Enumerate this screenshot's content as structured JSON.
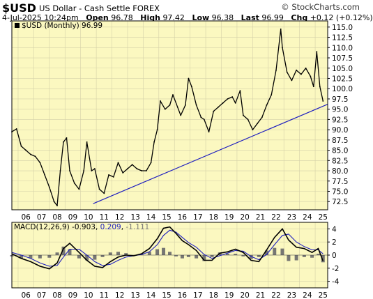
{
  "header": {
    "symbol": "$USD",
    "name": "US Dollar - Cash Settle FOREX",
    "site": "© StockCharts.com",
    "date": "4-Jul-2025 10:24pm",
    "open_label": "Open",
    "open": "96.78",
    "high_label": "High",
    "high": "97.42",
    "low_label": "Low",
    "low": "96.38",
    "last_label": "Last",
    "last": "96.99",
    "chg_label": "Chg",
    "chg": "+0.12 (+0.12%)"
  },
  "chart_data": [
    {
      "type": "line",
      "legend": "$USD (Monthly) 96.99",
      "x_ticks": [
        "06",
        "07",
        "08",
        "09",
        "10",
        "11",
        "12",
        "13",
        "14",
        "15",
        "16",
        "17",
        "18",
        "19",
        "20",
        "21",
        "22",
        "23",
        "24",
        "25"
      ],
      "y_ticks": [
        "72.5",
        "75.0",
        "77.5",
        "80.0",
        "82.5",
        "85.0",
        "87.5",
        "90.0",
        "92.5",
        "95.0",
        "97.5",
        "100.0",
        "102.5",
        "105.0",
        "107.5",
        "110.0",
        "112.5",
        "115.0"
      ],
      "ylim": [
        70.5,
        116.5
      ],
      "xlim": [
        2005.6,
        2025.8
      ],
      "x": [
        2005.6,
        2005.9,
        2006.2,
        2006.5,
        2006.8,
        2007.1,
        2007.4,
        2007.7,
        2008.0,
        2008.3,
        2008.5,
        2008.7,
        2008.9,
        2009.1,
        2009.3,
        2009.6,
        2009.9,
        2010.2,
        2010.4,
        2010.7,
        2010.9,
        2011.2,
        2011.5,
        2011.8,
        2012.1,
        2012.4,
        2012.7,
        2013.0,
        2013.3,
        2013.6,
        2013.9,
        2014.2,
        2014.5,
        2014.7,
        2014.9,
        2015.1,
        2015.4,
        2015.7,
        2015.9,
        2016.2,
        2016.4,
        2016.7,
        2016.9,
        2017.1,
        2017.4,
        2017.7,
        2017.9,
        2018.2,
        2018.5,
        2018.8,
        2019.1,
        2019.4,
        2019.7,
        2019.9,
        2020.2,
        2020.4,
        2020.7,
        2021.0,
        2021.3,
        2021.6,
        2021.9,
        2022.2,
        2022.5,
        2022.8,
        2022.9,
        2023.2,
        2023.5,
        2023.8,
        2024.1,
        2024.4,
        2024.7,
        2024.9,
        2025.1,
        2025.3,
        2025.5
      ],
      "y": [
        89.5,
        90.2,
        86.0,
        85.0,
        84.0,
        83.5,
        82.0,
        79.0,
        76.0,
        72.5,
        71.5,
        80.0,
        87.0,
        88.0,
        80.0,
        77.0,
        75.5,
        80.0,
        87.0,
        80.0,
        80.5,
        75.5,
        74.5,
        79.0,
        78.5,
        82.0,
        79.5,
        80.5,
        81.5,
        80.5,
        80.0,
        80.0,
        82.0,
        87.0,
        90.0,
        97.0,
        95.0,
        96.0,
        98.5,
        95.5,
        93.5,
        96.0,
        102.5,
        100.5,
        96.0,
        93.0,
        92.5,
        89.5,
        94.5,
        95.5,
        96.5,
        97.5,
        98.0,
        96.5,
        99.5,
        93.5,
        92.5,
        90.0,
        91.5,
        93.0,
        96.0,
        98.5,
        104.5,
        114.5,
        110.0,
        104.0,
        102.0,
        104.5,
        103.5,
        105.0,
        103.0,
        100.5,
        109.0,
        100.5,
        96.99
      ],
      "trendline": {
        "x": [
          2010.8,
          2025.8
        ],
        "y": [
          72.0,
          96.2
        ]
      }
    },
    {
      "type": "line",
      "legend": "MACD(12,26,9)",
      "macd": "-0.903",
      "signal": "0.209",
      "histogram": "-1.111",
      "y_ticks": [
        "4",
        "2",
        "0",
        "-2",
        "-4"
      ],
      "ylim": [
        -5,
        5
      ],
      "x": [
        2005.6,
        2006.2,
        2006.8,
        2007.4,
        2008.0,
        2008.5,
        2008.9,
        2009.3,
        2009.9,
        2010.4,
        2010.9,
        2011.4,
        2011.9,
        2012.4,
        2012.9,
        2013.4,
        2013.9,
        2014.4,
        2014.9,
        2015.3,
        2015.7,
        2016.1,
        2016.5,
        2016.9,
        2017.4,
        2017.9,
        2018.4,
        2018.9,
        2019.4,
        2019.9,
        2020.4,
        2020.9,
        2021.4,
        2021.9,
        2022.4,
        2022.9,
        2023.3,
        2023.8,
        2024.3,
        2024.8,
        2025.2,
        2025.5
      ],
      "macd_values": [
        0.2,
        -0.5,
        -1.0,
        -1.7,
        -2.1,
        -1.2,
        1.0,
        1.8,
        0.4,
        -0.8,
        -1.7,
        -1.9,
        -1.0,
        -0.3,
        0.0,
        -0.1,
        0.2,
        1.0,
        2.5,
        4.1,
        4.3,
        3.3,
        2.2,
        1.6,
        0.7,
        -0.8,
        -0.8,
        0.3,
        0.5,
        0.9,
        0.4,
        -0.8,
        -1.0,
        0.8,
        2.7,
        4.0,
        2.3,
        1.2,
        1.0,
        0.4,
        1.0,
        -0.9
      ],
      "signal_values": [
        0.4,
        0.0,
        -0.5,
        -1.2,
        -1.7,
        -1.6,
        -0.3,
        0.9,
        0.9,
        0.0,
        -1.0,
        -1.6,
        -1.4,
        -0.8,
        -0.3,
        -0.1,
        0.1,
        0.5,
        1.6,
        3.0,
        3.8,
        3.5,
        2.7,
        1.9,
        1.2,
        0.1,
        -0.5,
        -0.1,
        0.3,
        0.7,
        0.6,
        -0.2,
        -0.7,
        0.1,
        1.6,
        3.0,
        3.2,
        2.0,
        1.3,
        0.8,
        0.8,
        0.2
      ],
      "hist_values": [
        -0.2,
        -0.5,
        -0.5,
        -0.5,
        -0.4,
        0.4,
        1.3,
        0.9,
        -0.5,
        -0.8,
        -0.7,
        -0.3,
        0.4,
        0.5,
        0.3,
        0.0,
        0.1,
        0.5,
        0.9,
        1.1,
        0.5,
        -0.2,
        -0.5,
        -0.3,
        -0.5,
        -0.9,
        -0.3,
        0.4,
        0.2,
        0.2,
        -0.2,
        -0.6,
        -0.3,
        0.7,
        1.1,
        1.0,
        -0.9,
        -0.8,
        -0.3,
        -0.4,
        0.2,
        -1.1
      ]
    }
  ],
  "colors": {
    "plot_bg": "#fbf8c0",
    "price": "#000000",
    "trendline": "#1f1fbf",
    "macd": "#000000",
    "signal": "#1f1fbf",
    "hist": "#55555f",
    "grid": "#d4d0a8"
  }
}
